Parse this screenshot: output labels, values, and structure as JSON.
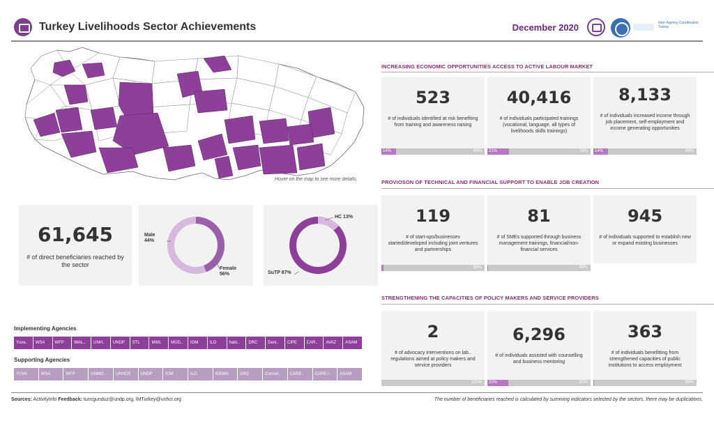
{
  "header": {
    "title": "Turkey Livelihoods Sector Achievements",
    "date": "December 2020",
    "partner_logo_text": "Inter-Agency Coordination Turkey"
  },
  "map": {
    "hint": "Hover on the map to see more details.",
    "highlight_color": "#8e3f99"
  },
  "sections": [
    {
      "title": "INCREASING ECONOMIC OPPORTUNITIES ACCESS TO ACTIVE LABOUR MARKET",
      "cards": [
        {
          "value": "523",
          "desc": "# of individuals identified at risk benefiting from training and awareness raising",
          "bar_left": "14%",
          "bar_right": "86%",
          "progress": 0.14
        },
        {
          "value": "40,416",
          "desc": "# of individuals participated trainings (vocational, language, all types of livelihoods skills trainings)",
          "bar_left": "21%",
          "bar_right": "79%",
          "progress": 0.21
        },
        {
          "value": "8,133",
          "desc": "# of individuals increased income through job placement, self-employment and income generating opportunities",
          "bar_left": "14%",
          "bar_right": "86%",
          "progress": 0.14
        }
      ]
    },
    {
      "title": "PROVIOSON OF TECHNICAL AND FINANCIAL SUPPORT TO ENABLE JOB CREATION",
      "cards": [
        {
          "value": "119",
          "desc": "# of start-ups/businesses started/developed including joint ventures and partnerships",
          "bar_left": "",
          "bar_right": "98%",
          "progress": 0.02
        },
        {
          "value": "81",
          "desc": "# of SMEs supported through business management trainings, financial/non-financial services",
          "bar_left": "",
          "bar_right": "99%",
          "progress": 0.01
        },
        {
          "value": "945",
          "desc": "# of individuals supported to establish new or expand existing businesses",
          "bar_left": "",
          "bar_right": "",
          "progress": 0
        }
      ]
    },
    {
      "title": "STRENGTHENING THE CAPACITIES OF POLICY MAKERS AND SERVICE PROVIDERS",
      "cards": [
        {
          "value": "2",
          "desc": "# of advocacy interventions on lab.. regulations aimed at policy makers and service providers",
          "bar_left": "",
          "bar_right": "100%",
          "progress": 0
        },
        {
          "value": "6,296",
          "desc": "# of individuals assisted with counselling and business mentoring",
          "bar_left": "20%",
          "bar_right": "80%",
          "progress": 0.2
        },
        {
          "value": "363",
          "desc": "# of individuals benefitting from strengthened capacities of public institutions to access employment",
          "bar_left": "",
          "bar_right": "99%",
          "progress": 0.01
        }
      ]
    }
  ],
  "summary": {
    "total": "61,645",
    "total_desc": "# of direct beneficiaries reached by the sector"
  },
  "gender": {
    "male_label": "Male",
    "male_pct": "44%",
    "female_label": "Female",
    "female_pct": "56%",
    "male_share": 0.44,
    "color_male": "#9b5ea8",
    "color_female": "#d7b8de"
  },
  "population": {
    "hc_label": "HC 13%",
    "sutp_label": "SuTP 87%",
    "hc_share": 0.13,
    "color_hc": "#d7b8de",
    "color_sutp": "#8e3f99"
  },
  "agencies": {
    "implementing_title": "Implementing Agencies",
    "implementing": [
      "Yuva..",
      "WSA",
      "WFP",
      "WAL..",
      "UNH..",
      "UNDP",
      "STL",
      "MWL",
      "MÜD..",
      "IOM",
      "ILO",
      "habi..",
      "DRC",
      "Deni..",
      "CIPE",
      "CAR..",
      "AVAZ",
      "ASAM"
    ],
    "supporting_title": "Supporting Agencies",
    "supporting": [
      "YUVA",
      "WSA",
      "WFP",
      "UNMO..",
      "UNHCR",
      "UNDP",
      "IOM",
      "ILO",
      "IDEMA",
      "DRC",
      "Concer..",
      "CARE..",
      "CARE I..",
      "ASAM"
    ]
  },
  "footer": {
    "sources_label": "Sources:",
    "sources_value": "ActivityInfo",
    "feedback_label": "Feedback:",
    "feedback_value": "tuncgunduz@undp.org, IMTurkey@unhcr.org",
    "note": "The number of beneficiaries reached is calculated by summing indicators selected by the sectors, there may be duplications."
  }
}
